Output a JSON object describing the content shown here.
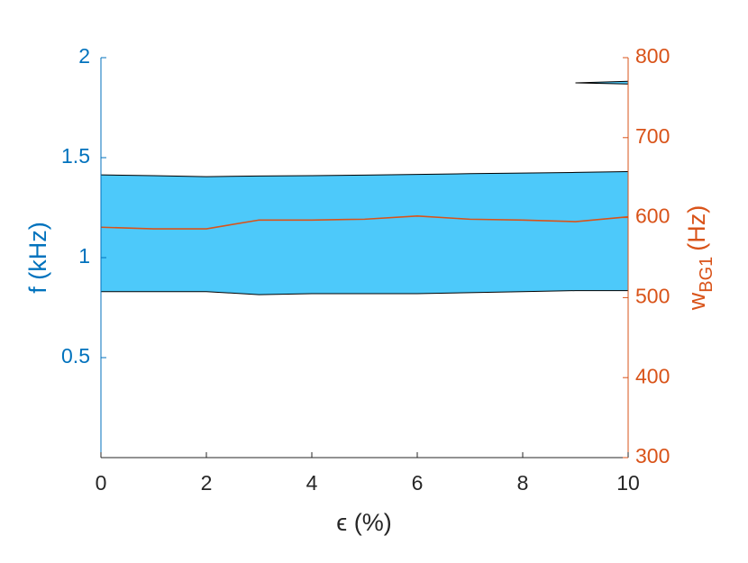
{
  "chart_data": {
    "type": "band-line",
    "xlabel": "ϵ (%)",
    "ylabel": "f (kHz)",
    "y2label": {
      "base": "w",
      "subscript": "BG1",
      "unit": "(Hz)"
    },
    "xlim": [
      0,
      10
    ],
    "xticks": [
      0,
      2,
      4,
      6,
      8,
      10
    ],
    "ylim": [
      0,
      2
    ],
    "yticks": [
      0.5,
      1,
      1.5,
      2
    ],
    "y2lim": [
      300,
      800
    ],
    "y2ticks": [
      300,
      400,
      500,
      600,
      700,
      800
    ],
    "ycolor": "#0072bd",
    "y2color": "#d95319",
    "series": [
      {
        "type": "band",
        "color": "#4dc9fa",
        "x": [
          0,
          1,
          2,
          3,
          4,
          5,
          6,
          7,
          8,
          9,
          10
        ],
        "lower": [
          0.83,
          0.83,
          0.83,
          0.815,
          0.82,
          0.82,
          0.82,
          0.825,
          0.83,
          0.835,
          0.835
        ],
        "upper": [
          1.414,
          1.41,
          1.405,
          1.408,
          1.41,
          1.413,
          1.416,
          1.42,
          1.423,
          1.426,
          1.43
        ]
      },
      {
        "type": "band",
        "color": "#4dc9fa",
        "x": [
          9,
          10
        ],
        "lower": [
          1.874,
          1.868
        ],
        "upper": [
          1.874,
          1.882
        ]
      },
      {
        "type": "line",
        "axis": "y2",
        "color": "#d95319",
        "x": [
          0,
          1,
          2,
          3,
          4,
          5,
          6,
          7,
          8,
          9,
          10
        ],
        "values": [
          588,
          586,
          586,
          597,
          597,
          598,
          602,
          598,
          597,
          595,
          601
        ]
      }
    ]
  }
}
